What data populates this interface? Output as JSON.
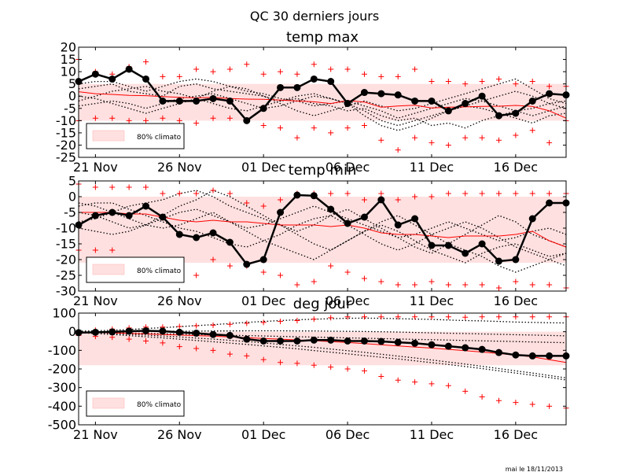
{
  "suptitle": "QC 30 derniers jours",
  "footer": "mai le 18/11/2013",
  "x_ticks": [
    "21 Nov",
    "26 Nov",
    "01 Dec",
    "06 Dec",
    "11 Dec",
    "16 Dec"
  ],
  "x_tick_days": [
    1,
    6,
    11,
    16,
    21,
    26
  ],
  "colors": {
    "observed": "#000000",
    "climatology": "#ff0000",
    "band": "#ffe0e0",
    "extremes": "#ff0000",
    "ensemble": "#000000"
  },
  "chart_data": [
    {
      "type": "line",
      "title": "temp max",
      "ylim": [
        -25,
        20
      ],
      "yticks": [
        -25,
        -20,
        -15,
        -10,
        -5,
        0,
        5,
        10,
        15,
        20
      ],
      "band": [
        -10,
        5
      ],
      "legend": "80% climato",
      "legend_position": "lower-left",
      "x_days": [
        0,
        1,
        2,
        3,
        4,
        5,
        6,
        7,
        8,
        9,
        10,
        11,
        12,
        13,
        14,
        15,
        16,
        17,
        18,
        19,
        20,
        21,
        22,
        23,
        24,
        25,
        26,
        27,
        28,
        29
      ],
      "series": [
        {
          "role": "observed",
          "values": [
            6,
            9,
            7,
            11,
            7,
            -2,
            -2,
            -2,
            -1,
            -2,
            -10,
            -5,
            3.5,
            3.5,
            7,
            6,
            -3,
            1.5,
            1,
            0.5,
            -2,
            -2,
            -6,
            -3,
            0,
            -8,
            -7,
            -2,
            1,
            0.5
          ]
        },
        {
          "role": "climatology",
          "values": [
            1.8,
            1,
            0.7,
            0.3,
            0.2,
            -0.2,
            -0.5,
            -0.7,
            -0.5,
            -1,
            -1.2,
            -1.3,
            -1.6,
            -2,
            -2.3,
            -3,
            -1.8,
            -2.4,
            -4.5,
            -4,
            -3.7,
            -4.8,
            -4.5,
            -4.4,
            -4.2,
            -4.1,
            -3.8,
            -4.2,
            -6,
            -9
          ]
        },
        {
          "role": "max-extremes",
          "values": [
            15,
            10,
            9,
            12,
            14,
            8,
            8,
            11,
            10,
            11,
            13,
            9,
            10,
            9,
            13,
            11,
            11,
            9,
            8,
            8,
            11,
            6,
            6,
            5,
            6,
            7,
            5,
            6,
            4,
            4
          ]
        },
        {
          "role": "min-extremes",
          "values": [
            -10,
            -9,
            -9,
            -10,
            -10,
            -9,
            -10,
            -11,
            -9,
            -9,
            -10,
            -12,
            -13,
            -17,
            -13,
            -15,
            -13,
            -12,
            -18,
            -22,
            -17,
            -19,
            -20,
            -17,
            -17,
            -18,
            -16,
            -14,
            -19,
            -10
          ]
        },
        {
          "role": "ensemble-1",
          "values": [
            3,
            4,
            5,
            2,
            1,
            0,
            4,
            5,
            3,
            2,
            1,
            0,
            -2,
            -1,
            -3,
            -4,
            -6,
            -5,
            -8,
            -10,
            -9,
            -12,
            -11,
            -13,
            -10,
            -8,
            -6,
            -5,
            -3,
            -2
          ]
        },
        {
          "role": "ensemble-2",
          "values": [
            -4,
            -3,
            -2,
            -3,
            -5,
            -3,
            -1,
            0,
            1,
            -1,
            -3,
            -5,
            -4,
            -2,
            0,
            -1,
            -3,
            -6,
            -10,
            -12,
            -10,
            -8,
            -6,
            -4,
            -2,
            0,
            2,
            0,
            -3,
            -5
          ]
        },
        {
          "role": "ensemble-3",
          "values": [
            0,
            -1,
            -3,
            -5,
            -7,
            -5,
            -3,
            -1,
            2,
            4,
            3,
            0,
            -3,
            -6,
            -8,
            -6,
            -4,
            -2,
            -4,
            -6,
            -5,
            -3,
            -1,
            1,
            3,
            5,
            7,
            3,
            -1,
            -3
          ]
        },
        {
          "role": "ensemble-4",
          "values": [
            5,
            6,
            6,
            4,
            2,
            4,
            6,
            7,
            6,
            4,
            2,
            1,
            -1,
            -2,
            -4,
            -3,
            -2,
            -4,
            -6,
            -9,
            -7,
            -5,
            -3,
            -1,
            -2,
            -4,
            -6,
            -8,
            -6,
            -4
          ]
        },
        {
          "role": "ensemble-5",
          "values": [
            -2,
            0,
            2,
            3,
            4,
            2,
            1,
            -1,
            -3,
            -5,
            -6,
            -4,
            -2,
            0,
            1,
            -1,
            -3,
            -8,
            -12,
            -14,
            -12,
            -9,
            -6,
            -4,
            -5,
            -7,
            -9,
            -11,
            -8,
            -7
          ]
        }
      ]
    },
    {
      "type": "line",
      "title": "temp min",
      "ylim": [
        -30,
        5
      ],
      "yticks": [
        -30,
        -25,
        -20,
        -15,
        -10,
        -5,
        0,
        5
      ],
      "band": [
        -21,
        0
      ],
      "legend": "80% climato",
      "legend_position": "lower-left",
      "x_days": [
        0,
        1,
        2,
        3,
        4,
        5,
        6,
        7,
        8,
        9,
        10,
        11,
        12,
        13,
        14,
        15,
        16,
        17,
        18,
        19,
        20,
        21,
        22,
        23,
        24,
        25,
        26,
        27,
        28,
        29
      ],
      "series": [
        {
          "role": "observed",
          "values": [
            -9,
            -6,
            -5,
            -6,
            -3,
            -6.5,
            -12,
            -13,
            -11.5,
            -14.5,
            -21.5,
            -20,
            -5,
            0.5,
            0.3,
            -4,
            -8.5,
            -6.5,
            -1,
            -9,
            -7,
            -15.5,
            -15.5,
            -18,
            -15,
            -20.5,
            -20,
            -7,
            -2,
            -2
          ]
        },
        {
          "role": "climatology",
          "values": [
            -5,
            -5,
            -5,
            -5.5,
            -5.5,
            -6.5,
            -7.5,
            -8,
            -7.5,
            -8,
            -8,
            -8.5,
            -9,
            -9,
            -9,
            -9.5,
            -9,
            -10,
            -11.5,
            -12,
            -12,
            -12.5,
            -13,
            -12.5,
            -12.5,
            -12.5,
            -12,
            -11,
            -14,
            -16
          ]
        },
        {
          "role": "max-extremes",
          "values": [
            4,
            3,
            3,
            3,
            3,
            1,
            1,
            1,
            2,
            1,
            -2,
            -3,
            -1,
            1,
            1,
            1,
            1,
            -1,
            1,
            -1,
            0,
            0,
            1,
            1,
            1,
            1,
            1,
            1,
            1,
            1
          ]
        },
        {
          "role": "min-extremes",
          "values": [
            -17,
            -17,
            -17,
            -20,
            -21,
            -20,
            -25,
            -25,
            -20,
            -22,
            -22,
            -24,
            -25,
            -28,
            -27,
            -22,
            -24,
            -26,
            -27,
            -28,
            -28,
            -27,
            -28,
            -28,
            -28,
            -29,
            -27,
            -28,
            -28,
            -29
          ]
        },
        {
          "role": "ensemble-1",
          "values": [
            -3,
            -2,
            -2,
            -4,
            -6,
            -8,
            -10,
            -11,
            -13,
            -15,
            -16,
            -14,
            -12,
            -9,
            -7,
            -6,
            -9,
            -12,
            -15,
            -17,
            -15,
            -12,
            -10,
            -8,
            -10,
            -13,
            -16,
            -18,
            -20,
            -22
          ]
        },
        {
          "role": "ensemble-2",
          "values": [
            -8,
            -7,
            -5,
            -3,
            -2,
            -1,
            1,
            2,
            0,
            -3,
            -5,
            -7,
            -9,
            -12,
            -15,
            -17,
            -14,
            -11,
            -9,
            -11,
            -14,
            -17,
            -19,
            -21,
            -18,
            -16,
            -15,
            -17,
            -19,
            -18
          ]
        },
        {
          "role": "ensemble-3",
          "values": [
            -5,
            -6,
            -8,
            -10,
            -9,
            -6,
            -3,
            -1,
            2,
            0,
            -3,
            -6,
            -9,
            -11,
            -9,
            -6,
            -4,
            -7,
            -10,
            -13,
            -16,
            -18,
            -15,
            -12,
            -9,
            -6,
            -8,
            -12,
            -14,
            -16
          ]
        },
        {
          "role": "ensemble-4",
          "values": [
            -2,
            -3,
            -5,
            -7,
            -9,
            -10,
            -9,
            -7,
            -5,
            -8,
            -11,
            -14,
            -16,
            -18,
            -20,
            -17,
            -14,
            -11,
            -8,
            -6,
            -9,
            -12,
            -15,
            -17,
            -19,
            -22,
            -24,
            -22,
            -20,
            -18
          ]
        },
        {
          "role": "ensemble-5",
          "values": [
            -10,
            -11,
            -12,
            -11,
            -9,
            -7,
            -5,
            -4,
            -6,
            -8,
            -10,
            -9,
            -7,
            -5,
            -3,
            -5,
            -7,
            -9,
            -11,
            -13,
            -12,
            -10,
            -8,
            -10,
            -12,
            -14,
            -13,
            -11,
            -10,
            -12
          ]
        }
      ]
    },
    {
      "type": "line",
      "title": "deg jour",
      "ylim": [
        -500,
        100
      ],
      "yticks": [
        -500,
        -400,
        -300,
        -200,
        -100,
        0,
        100
      ],
      "band": [
        -180,
        0
      ],
      "legend": "80% climato",
      "legend_position": "lower-left",
      "x_days": [
        0,
        1,
        2,
        3,
        4,
        5,
        6,
        7,
        8,
        9,
        10,
        11,
        12,
        13,
        14,
        15,
        16,
        17,
        18,
        19,
        20,
        21,
        22,
        23,
        24,
        25,
        26,
        27,
        28,
        29
      ],
      "series": [
        {
          "role": "observed",
          "values": [
            -5,
            -3,
            -1,
            3,
            5,
            3,
            -3,
            -8,
            -15,
            -20,
            -40,
            -50,
            -50,
            -50,
            -45,
            -45,
            -50,
            -50,
            -52,
            -57,
            -62,
            -70,
            -78,
            -86,
            -95,
            -112,
            -125,
            -130,
            -130,
            -130
          ]
        },
        {
          "role": "climatology",
          "values": [
            -2,
            -4,
            -6,
            -9,
            -12,
            -15,
            -18,
            -21,
            -24,
            -28,
            -32,
            -36,
            -40,
            -44,
            -48,
            -53,
            -58,
            -64,
            -70,
            -76,
            -82,
            -88,
            -95,
            -102,
            -109,
            -117,
            -125,
            -135,
            -150,
            -165
          ]
        },
        {
          "role": "max-extremes",
          "values": [
            5,
            8,
            14,
            20,
            25,
            25,
            28,
            32,
            35,
            40,
            45,
            50,
            55,
            60,
            68,
            75,
            80,
            80,
            80,
            80,
            80,
            80,
            80,
            78,
            80,
            80,
            80,
            80,
            80,
            80
          ]
        },
        {
          "role": "min-extremes",
          "values": [
            -20,
            -25,
            -30,
            -40,
            -50,
            -60,
            -80,
            -90,
            -100,
            -120,
            -130,
            -150,
            -165,
            -170,
            -180,
            -190,
            -200,
            -210,
            -240,
            -260,
            -270,
            -280,
            -290,
            -320,
            -350,
            -370,
            -380,
            -390,
            -400,
            -410
          ]
        },
        {
          "role": "ensemble-1",
          "values": [
            3,
            5,
            8,
            12,
            17,
            22,
            27,
            33,
            38,
            44,
            50,
            55,
            60,
            64,
            67,
            70,
            72,
            73,
            72,
            70,
            68,
            66,
            63,
            60,
            58,
            55,
            52,
            50,
            48,
            47
          ]
        },
        {
          "role": "ensemble-2",
          "values": [
            0,
            0,
            1,
            1,
            2,
            2,
            3,
            3,
            4,
            4,
            5,
            5,
            5,
            4,
            4,
            3,
            2,
            1,
            0,
            -2,
            -4,
            -6,
            -8,
            -10,
            -12,
            -14,
            -16,
            -18,
            -20,
            -22
          ]
        },
        {
          "role": "ensemble-3",
          "values": [
            -5,
            -10,
            -15,
            -21,
            -27,
            -33,
            -40,
            -47,
            -54,
            -61,
            -68,
            -76,
            -84,
            -92,
            -101,
            -110,
            -119,
            -128,
            -137,
            -146,
            -156,
            -166,
            -176,
            -187,
            -198,
            -210,
            -222,
            -234,
            -246,
            -259
          ]
        },
        {
          "role": "ensemble-4",
          "values": [
            -3,
            -6,
            -10,
            -14,
            -18,
            -23,
            -28,
            -34,
            -40,
            -46,
            -53,
            -60,
            -68,
            -76,
            -84,
            -93,
            -102,
            -111,
            -121,
            -131,
            -141,
            -152,
            -163,
            -174,
            -186,
            -198,
            -210,
            -222,
            -235,
            -248
          ]
        },
        {
          "role": "ensemble-5",
          "values": [
            -2,
            -3,
            -5,
            -7,
            -9,
            -11,
            -13,
            -15,
            -17,
            -19,
            -21,
            -23,
            -25,
            -27,
            -29,
            -31,
            -33,
            -35,
            -37,
            -39,
            -41,
            -43,
            -45,
            -47,
            -49,
            -51,
            -53,
            -55,
            -57,
            -59
          ]
        }
      ]
    }
  ]
}
